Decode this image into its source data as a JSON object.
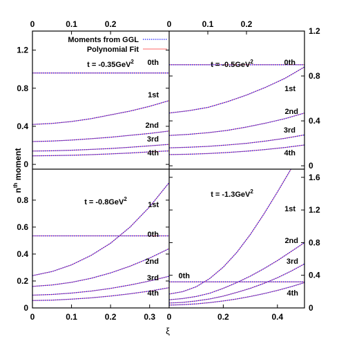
{
  "chart_data": {
    "type": "line",
    "xlabel": "ξ",
    "ylabel": "n",
    "ylabel_sup": "th",
    "ylabel_suffix": "moment",
    "legend": {
      "position": "top-left",
      "entries": [
        {
          "label": "Moments from GGL",
          "color": "#1a1aff",
          "style": "dotted"
        },
        {
          "label": "Polynomial Fit",
          "color": "#ff6666",
          "style": "solid"
        }
      ]
    },
    "x_axis_bottom": {
      "range": [
        0,
        0.5
      ],
      "ticks": [
        "0",
        "0.1",
        "0.2",
        "0.3",
        "0.4"
      ]
    },
    "x_axis_top": {
      "range": [
        0,
        0.35
      ],
      "ticks": [
        "0",
        "0.1",
        "0.2"
      ]
    },
    "panels": [
      {
        "id": "tl",
        "title": "t = -0.35GeV",
        "title_sup": "2",
        "xlim": [
          0,
          0.35
        ],
        "ylim": [
          -0.05,
          1.4
        ],
        "yticks": [
          "0",
          "0.4",
          "0.8",
          "1.2"
        ],
        "yaxis_side": "left",
        "series": [
          {
            "name": "0th",
            "x": [
              0,
              0.35
            ],
            "values": [
              0.96,
              0.96
            ]
          },
          {
            "name": "1st",
            "x": [
              0,
              0.05,
              0.1,
              0.15,
              0.2,
              0.25,
              0.3,
              0.35
            ],
            "values": [
              0.42,
              0.43,
              0.45,
              0.48,
              0.52,
              0.56,
              0.61,
              0.67
            ]
          },
          {
            "name": "2nd",
            "x": [
              0,
              0.05,
              0.1,
              0.15,
              0.2,
              0.25,
              0.3,
              0.35
            ],
            "values": [
              0.24,
              0.245,
              0.255,
              0.27,
              0.285,
              0.305,
              0.325,
              0.35
            ]
          },
          {
            "name": "3rd",
            "x": [
              0,
              0.05,
              0.1,
              0.15,
              0.2,
              0.25,
              0.3,
              0.35
            ],
            "values": [
              0.14,
              0.143,
              0.149,
              0.157,
              0.167,
              0.18,
              0.195,
              0.21
            ]
          },
          {
            "name": "4th",
            "x": [
              0,
              0.05,
              0.1,
              0.15,
              0.2,
              0.25,
              0.3,
              0.35
            ],
            "values": [
              0.09,
              0.092,
              0.096,
              0.102,
              0.11,
              0.12,
              0.131,
              0.142
            ]
          }
        ]
      },
      {
        "id": "tr",
        "title": "t = -0.5GeV",
        "title_sup": "2",
        "xlim": [
          0,
          0.35
        ],
        "ylim": [
          -0.03,
          1.2
        ],
        "yticks": [
          "0",
          "0.4",
          "0.8",
          "1.2"
        ],
        "yaxis_side": "right",
        "series": [
          {
            "name": "0th",
            "x": [
              0,
              0.35
            ],
            "values": [
              0.9,
              0.9
            ]
          },
          {
            "name": "1st",
            "x": [
              0,
              0.05,
              0.1,
              0.15,
              0.2,
              0.25,
              0.3,
              0.35
            ],
            "values": [
              0.47,
              0.49,
              0.52,
              0.57,
              0.63,
              0.7,
              0.78,
              0.88
            ]
          },
          {
            "name": "2nd",
            "x": [
              0,
              0.05,
              0.1,
              0.15,
              0.2,
              0.25,
              0.3,
              0.35
            ],
            "values": [
              0.27,
              0.28,
              0.295,
              0.315,
              0.345,
              0.38,
              0.42,
              0.47
            ]
          },
          {
            "name": "3rd",
            "x": [
              0,
              0.05,
              0.1,
              0.15,
              0.2,
              0.25,
              0.3,
              0.35
            ],
            "values": [
              0.16,
              0.165,
              0.173,
              0.185,
              0.2,
              0.22,
              0.245,
              0.275
            ]
          },
          {
            "name": "4th",
            "x": [
              0,
              0.05,
              0.1,
              0.15,
              0.2,
              0.25,
              0.3,
              0.35
            ],
            "values": [
              0.1,
              0.103,
              0.109,
              0.118,
              0.13,
              0.145,
              0.163,
              0.185
            ]
          }
        ]
      },
      {
        "id": "bl",
        "title": "t = -0.8GeV",
        "title_sup": "2",
        "xlim": [
          0,
          0.35
        ],
        "ylim": [
          0,
          1.03
        ],
        "yticks": [
          "0",
          "0.2",
          "0.4",
          "0.6",
          "0.8"
        ],
        "xticks": [
          "0",
          "0.1",
          "0.2",
          "0.3"
        ],
        "yaxis_side": "left",
        "series": [
          {
            "name": "0th",
            "x": [
              0,
              0.35
            ],
            "values": [
              0.535,
              0.535
            ]
          },
          {
            "name": "1st",
            "x": [
              0,
              0.05,
              0.1,
              0.15,
              0.2,
              0.25,
              0.3,
              0.35
            ],
            "values": [
              0.24,
              0.27,
              0.32,
              0.39,
              0.48,
              0.6,
              0.75,
              0.93
            ]
          },
          {
            "name": "2nd",
            "x": [
              0,
              0.05,
              0.1,
              0.15,
              0.2,
              0.25,
              0.3,
              0.35
            ],
            "values": [
              0.16,
              0.17,
              0.19,
              0.22,
              0.26,
              0.31,
              0.37,
              0.44
            ]
          },
          {
            "name": "3rd",
            "x": [
              0,
              0.05,
              0.1,
              0.15,
              0.2,
              0.25,
              0.3,
              0.35
            ],
            "values": [
              0.095,
              0.1,
              0.11,
              0.125,
              0.145,
              0.17,
              0.2,
              0.235
            ]
          },
          {
            "name": "4th",
            "x": [
              0,
              0.05,
              0.1,
              0.15,
              0.2,
              0.25,
              0.3,
              0.35
            ],
            "values": [
              0.055,
              0.058,
              0.065,
              0.075,
              0.088,
              0.105,
              0.125,
              0.15
            ]
          }
        ]
      },
      {
        "id": "br",
        "title": "t = -1.3GeV",
        "title_sup": "2",
        "xlim": [
          0,
          0.5
        ],
        "ylim": [
          0,
          1.7
        ],
        "yticks": [
          "0",
          "0.4",
          "0.8",
          "1.2",
          "1.6"
        ],
        "xticks": [
          "0",
          "0.2",
          "0.4"
        ],
        "yaxis_side": "right",
        "series": [
          {
            "name": "0th",
            "x": [
              0,
              0.5
            ],
            "values": [
              0.32,
              0.32
            ]
          },
          {
            "name": "1st",
            "x": [
              0,
              0.05,
              0.1,
              0.15,
              0.2,
              0.25,
              0.3,
              0.35,
              0.4,
              0.45
            ],
            "values": [
              0.17,
              0.2,
              0.26,
              0.36,
              0.5,
              0.68,
              0.9,
              1.15,
              1.42,
              1.7
            ]
          },
          {
            "name": "2nd",
            "x": [
              0,
              0.05,
              0.1,
              0.15,
              0.2,
              0.25,
              0.3,
              0.35,
              0.4,
              0.45,
              0.5
            ],
            "values": [
              0.1,
              0.115,
              0.14,
              0.18,
              0.24,
              0.31,
              0.39,
              0.48,
              0.58,
              0.69,
              0.8
            ]
          },
          {
            "name": "3rd",
            "x": [
              0,
              0.05,
              0.1,
              0.15,
              0.2,
              0.25,
              0.3,
              0.35,
              0.4,
              0.45,
              0.5
            ],
            "values": [
              0.06,
              0.068,
              0.085,
              0.11,
              0.145,
              0.19,
              0.24,
              0.3,
              0.37,
              0.45,
              0.54
            ]
          },
          {
            "name": "4th",
            "x": [
              0,
              0.05,
              0.1,
              0.15,
              0.2,
              0.25,
              0.3,
              0.35,
              0.4,
              0.45,
              0.5
            ],
            "values": [
              0.035,
              0.04,
              0.05,
              0.065,
              0.085,
              0.11,
              0.14,
              0.175,
              0.215,
              0.26,
              0.31
            ]
          }
        ]
      }
    ]
  }
}
